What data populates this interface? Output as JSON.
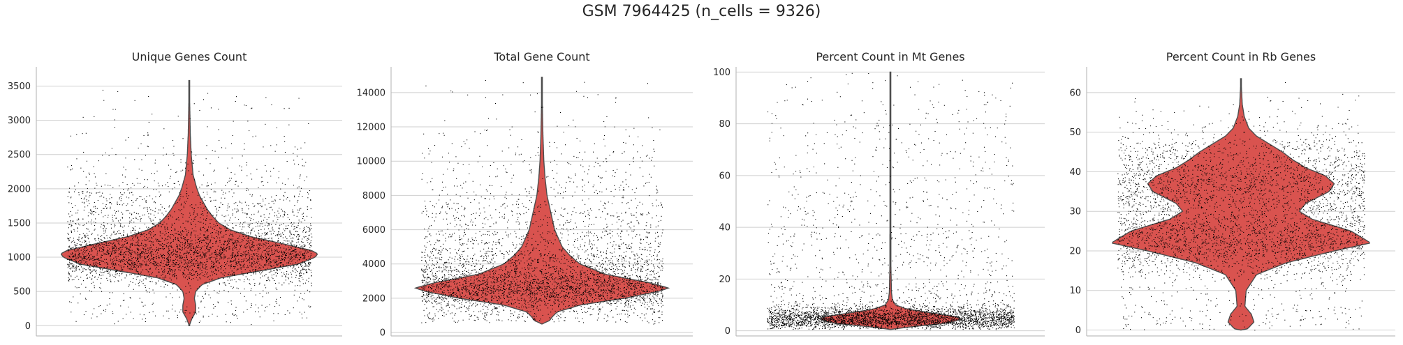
{
  "title": "GSM 7964425 (n_cells = 9326)",
  "colors": {
    "violin": "#d9534f",
    "edge": "#4d4d4d",
    "grid": "#cfcfcf",
    "axis": "#bdbdbd",
    "points": "#000000"
  },
  "chart_data": [
    {
      "type": "violin",
      "title": "Unique Genes Count",
      "ylim": [
        -150,
        3780
      ],
      "yticks": [
        0,
        500,
        1000,
        1500,
        2000,
        2500,
        3000,
        3500
      ],
      "grid": true,
      "density": [
        [
          0,
          0
        ],
        [
          100,
          0.02
        ],
        [
          200,
          0.05
        ],
        [
          300,
          0.05
        ],
        [
          400,
          0.04
        ],
        [
          500,
          0.05
        ],
        [
          600,
          0.1
        ],
        [
          700,
          0.25
        ],
        [
          800,
          0.55
        ],
        [
          900,
          0.85
        ],
        [
          1000,
          0.98
        ],
        [
          1050,
          1.0
        ],
        [
          1100,
          0.95
        ],
        [
          1200,
          0.72
        ],
        [
          1300,
          0.48
        ],
        [
          1400,
          0.32
        ],
        [
          1500,
          0.23
        ],
        [
          1600,
          0.18
        ],
        [
          1700,
          0.14
        ],
        [
          1800,
          0.11
        ],
        [
          1900,
          0.08
        ],
        [
          2000,
          0.06
        ],
        [
          2200,
          0.03
        ],
        [
          2500,
          0.015
        ],
        [
          2800,
          0.008
        ],
        [
          3200,
          0.004
        ],
        [
          3580,
          0
        ]
      ],
      "max_half_width_frac": 0.5
    },
    {
      "type": "violin",
      "title": "Total Gene Count",
      "ylim": [
        -200,
        15500
      ],
      "yticks": [
        0,
        2000,
        4000,
        6000,
        8000,
        10000,
        12000,
        14000
      ],
      "grid": true,
      "density": [
        [
          500,
          0
        ],
        [
          700,
          0.06
        ],
        [
          900,
          0.08
        ],
        [
          1200,
          0.12
        ],
        [
          1600,
          0.3
        ],
        [
          2000,
          0.65
        ],
        [
          2400,
          0.92
        ],
        [
          2600,
          1.0
        ],
        [
          2900,
          0.85
        ],
        [
          3400,
          0.5
        ],
        [
          4000,
          0.3
        ],
        [
          4500,
          0.22
        ],
        [
          5000,
          0.16
        ],
        [
          6000,
          0.1
        ],
        [
          7000,
          0.07
        ],
        [
          8000,
          0.04
        ],
        [
          9000,
          0.025
        ],
        [
          10000,
          0.015
        ],
        [
          11500,
          0.008
        ],
        [
          13000,
          0.004
        ],
        [
          14900,
          0
        ]
      ],
      "max_half_width_frac": 0.5
    },
    {
      "type": "violin",
      "title": "Percent Count in Mt Genes",
      "ylim": [
        -2,
        102
      ],
      "yticks": [
        0,
        20,
        40,
        60,
        80,
        100
      ],
      "grid": true,
      "density": [
        [
          0.5,
          0
        ],
        [
          1.5,
          0.15
        ],
        [
          3,
          0.45
        ],
        [
          4.5,
          0.55
        ],
        [
          5.5,
          0.5
        ],
        [
          7,
          0.3
        ],
        [
          8.5,
          0.12
        ],
        [
          10,
          0.04
        ],
        [
          12,
          0.015
        ],
        [
          15,
          0.008
        ],
        [
          25,
          0.004
        ],
        [
          50,
          0.003
        ],
        [
          100,
          0
        ]
      ],
      "max_half_width_frac": 0.5
    },
    {
      "type": "violin",
      "title": "Percent Count in Rb Genes",
      "ylim": [
        -1.5,
        66.5
      ],
      "yticks": [
        0,
        10,
        20,
        30,
        40,
        50,
        60
      ],
      "grid": true,
      "density": [
        [
          0,
          0
        ],
        [
          0.3,
          0.05
        ],
        [
          2,
          0.1
        ],
        [
          4,
          0.08
        ],
        [
          6,
          0.03
        ],
        [
          10,
          0.04
        ],
        [
          14,
          0.12
        ],
        [
          17,
          0.35
        ],
        [
          20,
          0.72
        ],
        [
          22,
          1.0
        ],
        [
          25,
          0.85
        ],
        [
          28,
          0.55
        ],
        [
          30,
          0.45
        ],
        [
          32,
          0.5
        ],
        [
          35,
          0.68
        ],
        [
          37,
          0.72
        ],
        [
          39,
          0.65
        ],
        [
          41,
          0.5
        ],
        [
          43,
          0.4
        ],
        [
          45,
          0.32
        ],
        [
          47,
          0.22
        ],
        [
          49,
          0.12
        ],
        [
          51,
          0.06
        ],
        [
          54,
          0.025
        ],
        [
          57,
          0.01
        ],
        [
          63.5,
          0
        ]
      ],
      "max_half_width_frac": 0.5
    }
  ]
}
